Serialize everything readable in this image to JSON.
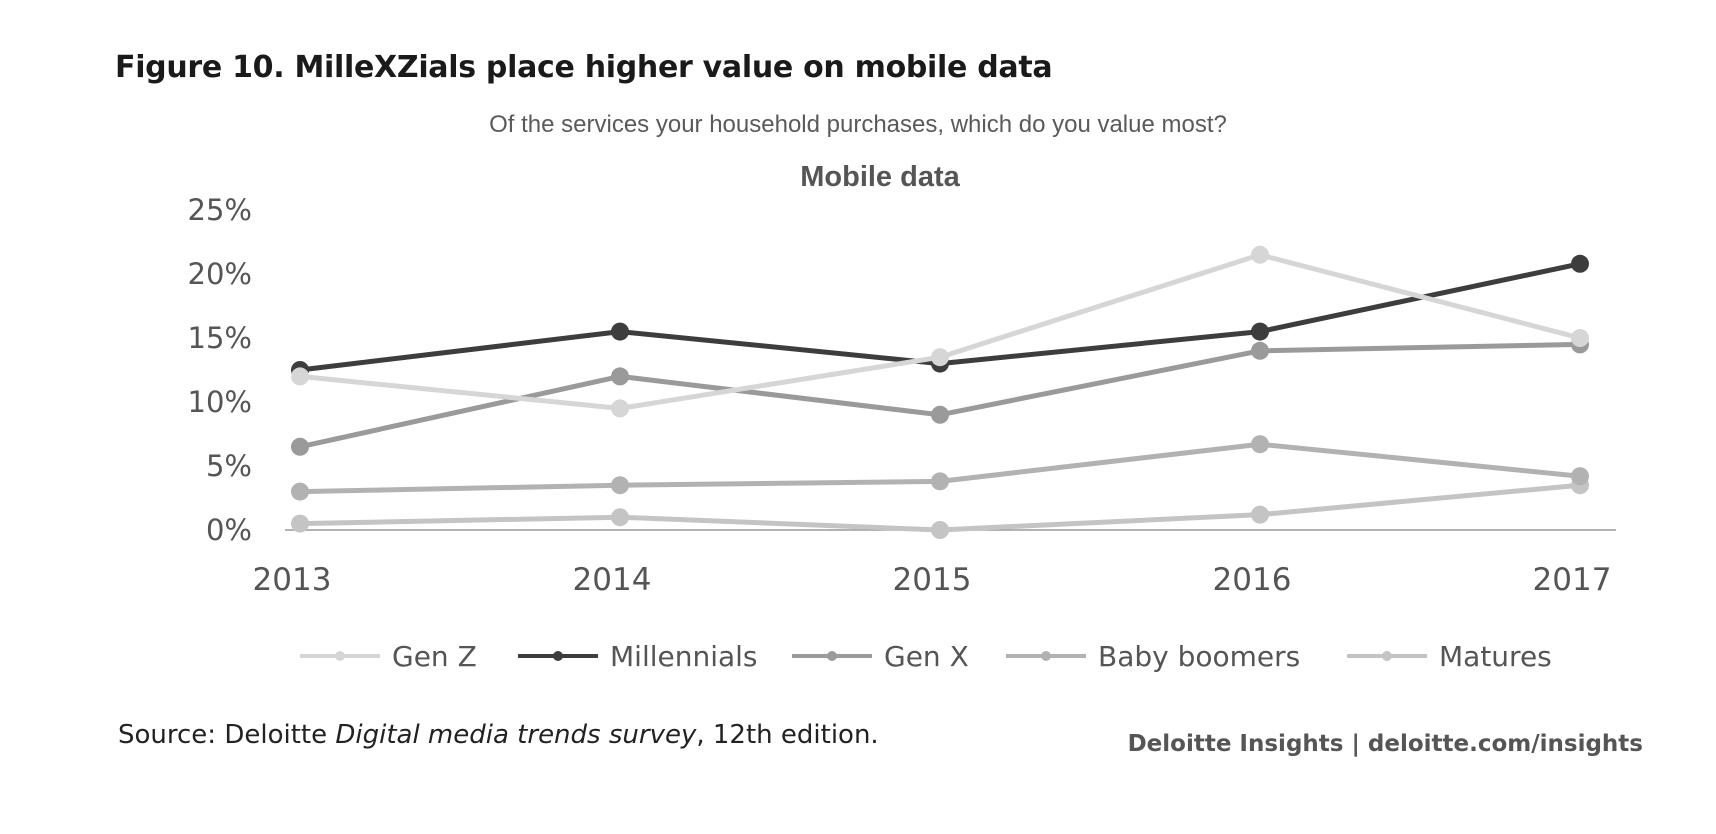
{
  "figure_title": "Figure 10. MilleXZials place higher value on mobile data",
  "source": {
    "prefix": "Source: Deloitte ",
    "italic": "Digital media trends survey",
    "suffix": ", 12th edition."
  },
  "brand": "Deloitte Insights | deloitte.com/insights",
  "chart_data": {
    "type": "line",
    "subtitle": "Of the services your household purchases, which do you value most?",
    "title": "Mobile data",
    "xlabel": "",
    "ylabel": "",
    "x": [
      "2013",
      "2014",
      "2015",
      "2016",
      "2017"
    ],
    "y_ticks": [
      "0%",
      "5%",
      "10%",
      "15%",
      "20%",
      "25%"
    ],
    "ylim": [
      0,
      25
    ],
    "grid": false,
    "legend_position": "bottom",
    "series": [
      {
        "name": "Gen Z",
        "color": "#d6d6d6",
        "values": [
          12,
          9.5,
          13.5,
          21.5,
          15
        ]
      },
      {
        "name": "Millennials",
        "color": "#3d3d3d",
        "values": [
          12.5,
          15.5,
          13,
          15.5,
          20.8
        ]
      },
      {
        "name": "Gen X",
        "color": "#9a9a9a",
        "values": [
          6.5,
          12,
          9,
          14,
          14.5
        ]
      },
      {
        "name": "Baby boomers",
        "color": "#b2b2b2",
        "values": [
          3,
          3.5,
          3.8,
          6.7,
          4.2
        ]
      },
      {
        "name": "Matures",
        "color": "#c4c4c4",
        "values": [
          0.5,
          1,
          0,
          1.2,
          3.5
        ]
      }
    ]
  }
}
